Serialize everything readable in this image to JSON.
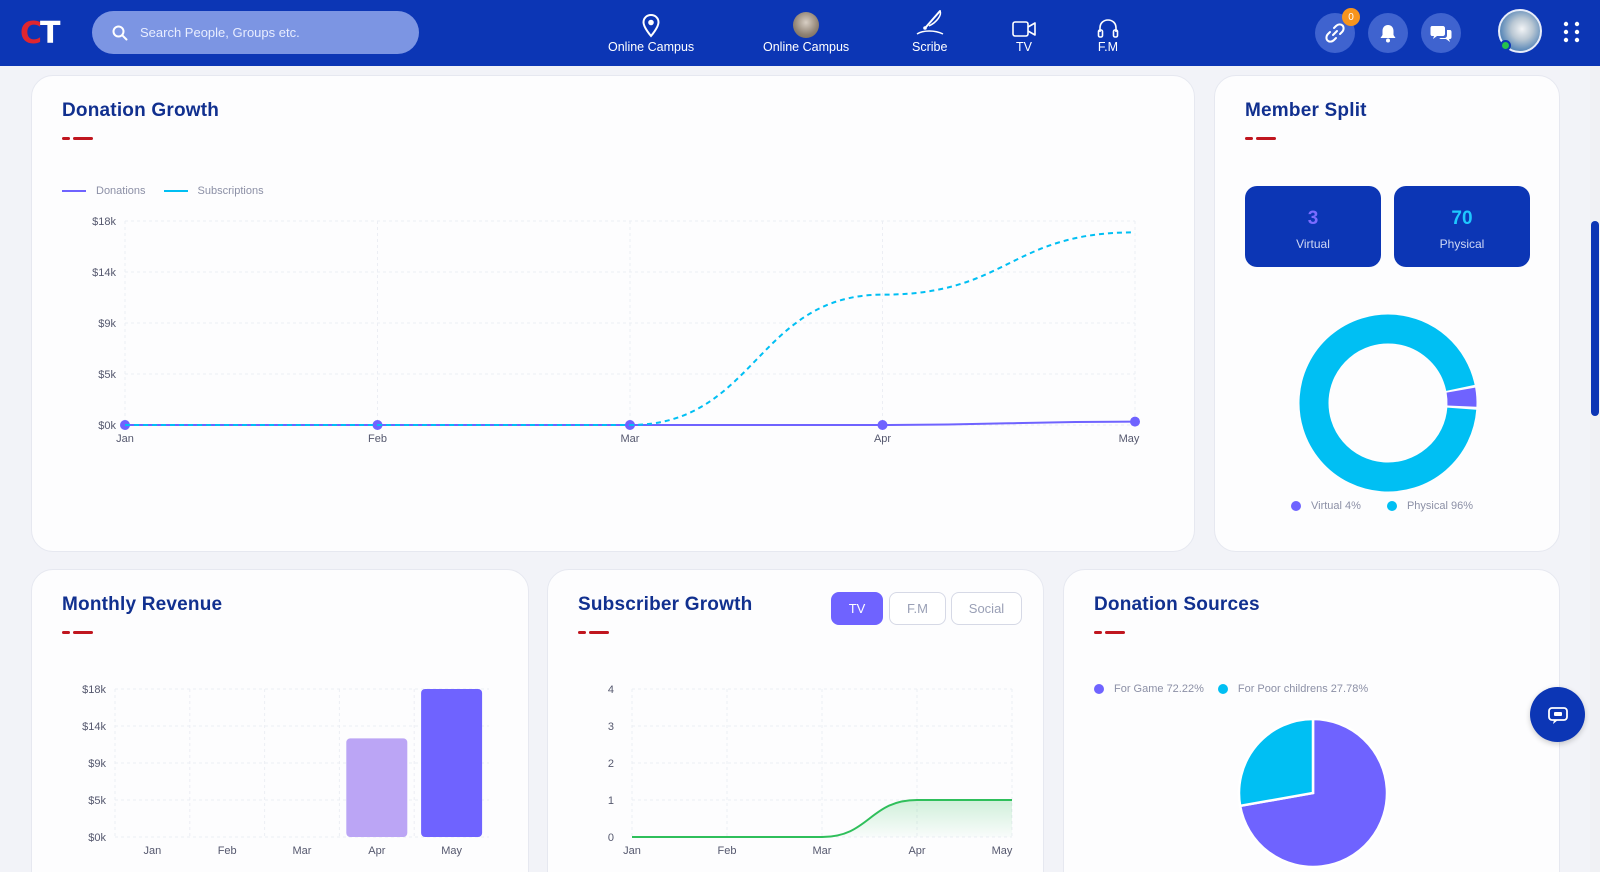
{
  "brand": {
    "logo_c": "C",
    "logo_t": "T"
  },
  "search": {
    "placeholder": "Search People, Groups etc."
  },
  "nav": [
    {
      "label": "Online Campus",
      "icon": "location-pin-icon"
    },
    {
      "label": "Online Campus",
      "icon": "campus-avatar"
    },
    {
      "label": "Scribe",
      "icon": "scribe-pen-icon"
    },
    {
      "label": "TV",
      "icon": "video-camera-icon"
    },
    {
      "label": "F.M",
      "icon": "headphones-icon"
    }
  ],
  "header_actions": {
    "links_badge": "0"
  },
  "colors": {
    "primary": "#0c36b5",
    "purple": "#6f63ff",
    "cyan": "#00bff3",
    "green": "#2fbf5b",
    "accent_red": "#c0161f",
    "light_purple": "#bba5f5"
  },
  "donation_growth": {
    "title": "Donation Growth",
    "chart_data": {
      "type": "line",
      "categories": [
        "Jan",
        "Feb",
        "Mar",
        "Apr",
        "May"
      ],
      "y_ticks": [
        "$0k",
        "$5k",
        "$9k",
        "$14k",
        "$18k"
      ],
      "ylim": [
        0,
        18000
      ],
      "series": [
        {
          "name": "Donations",
          "values": [
            0,
            0,
            0,
            0,
            300
          ],
          "style": "solid"
        },
        {
          "name": "Subscriptions",
          "values": [
            0,
            0,
            0,
            11500,
            17000
          ],
          "style": "dashed"
        }
      ],
      "legend": "top-left",
      "grid": true
    }
  },
  "member_split": {
    "title": "Member Split",
    "virtual": {
      "count": "3",
      "label": "Virtual"
    },
    "physical": {
      "count": "70",
      "label": "Physical"
    },
    "chart_data": {
      "type": "pie",
      "variant": "donut",
      "labels": [
        "Virtual",
        "Physical"
      ],
      "values": [
        4,
        96
      ]
    },
    "legend_items": [
      "Virtual 4%",
      "Physical 96%"
    ]
  },
  "monthly_revenue": {
    "title": "Monthly Revenue",
    "chart_data": {
      "type": "bar",
      "categories": [
        "Jan",
        "Feb",
        "Mar",
        "Apr",
        "May"
      ],
      "y_ticks": [
        "$0k",
        "$5k",
        "$9k",
        "$14k",
        "$18k"
      ],
      "values": [
        0,
        0,
        0,
        12000,
        18000
      ],
      "ylim": [
        0,
        18000
      ],
      "grid": true
    }
  },
  "subscriber_growth": {
    "title": "Subscriber Growth",
    "tabs": [
      "TV",
      "F.M",
      "Social"
    ],
    "active_tab": "TV",
    "chart_data": {
      "type": "area",
      "categories": [
        "Jan",
        "Feb",
        "Mar",
        "Apr",
        "May"
      ],
      "y_ticks": [
        "0",
        "1",
        "2",
        "3",
        "4"
      ],
      "values": [
        0,
        0,
        0,
        1,
        1
      ],
      "ylim": [
        0,
        4
      ],
      "grid": true
    }
  },
  "donation_sources": {
    "title": "Donation Sources",
    "chart_data": {
      "type": "pie",
      "labels": [
        "For Game",
        "For Poor childrens"
      ],
      "values": [
        72.22,
        27.78
      ]
    },
    "legend_items": [
      "For Game 72.22%",
      "For Poor childrens 27.78%"
    ]
  }
}
